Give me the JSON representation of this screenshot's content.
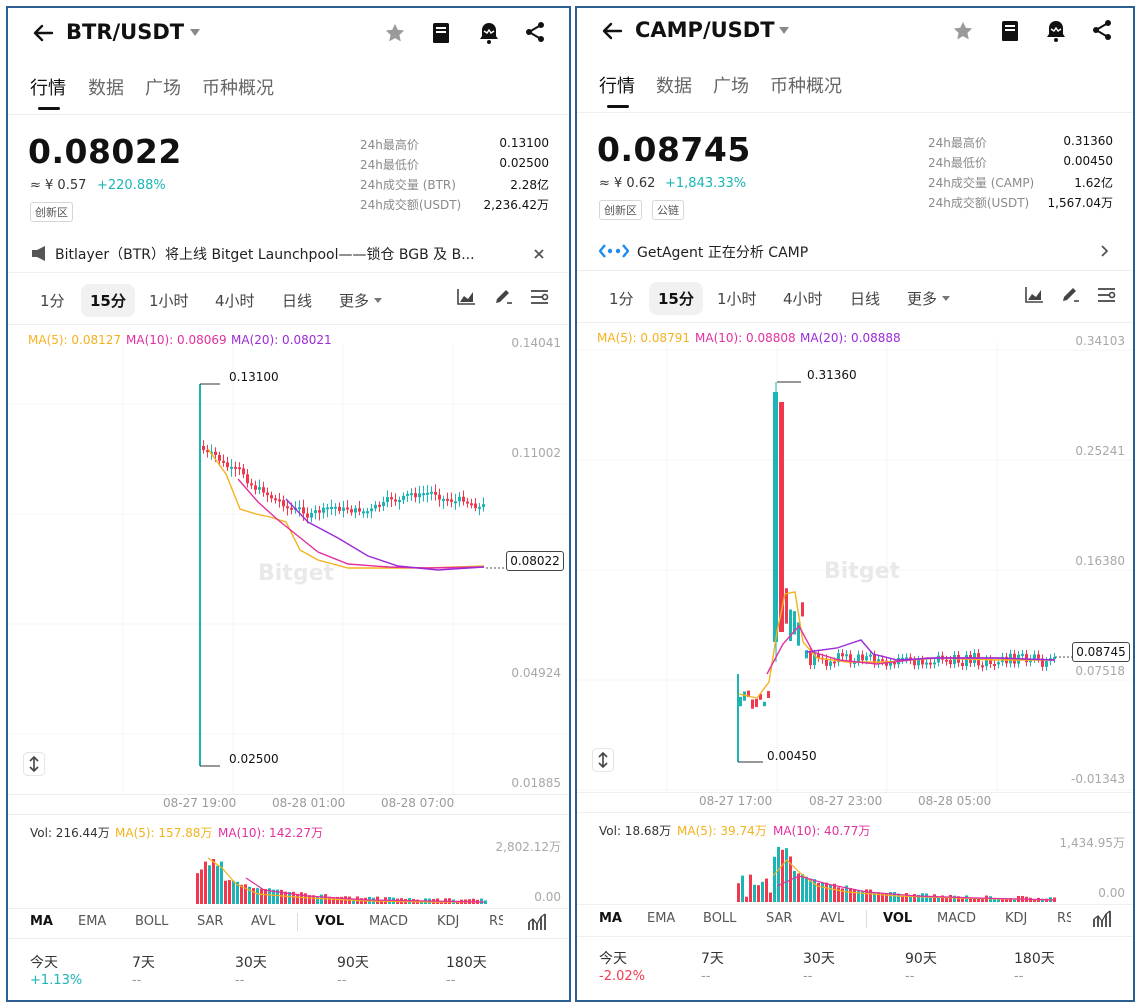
{
  "panels": [
    {
      "pair": "BTR/USDT",
      "tabs": [
        "行情",
        "数据",
        "广场",
        "币种概况"
      ],
      "price": "0.08022",
      "cny": "≈ ¥ 0.57",
      "change": "+220.88%",
      "badges": [
        "创新区"
      ],
      "stats": [
        {
          "label": "24h最高价",
          "value": "0.13100"
        },
        {
          "label": "24h最低价",
          "value": "0.02500"
        },
        {
          "label": "24h成交量 (BTR)",
          "value": "2.28亿"
        },
        {
          "label": "24h成交额(USDT)",
          "value": "2,236.42万"
        }
      ],
      "notice": "Bitlayer（BTR）将上线 Bitget Launchpool——锁仓 BGB 及 B...",
      "timeframes": [
        "1分",
        "15分",
        "1小时",
        "4小时",
        "日线",
        "更多"
      ],
      "ma_legend": {
        "ma5": "MA(5): 0.08127",
        "ma10": "MA(10): 0.08069",
        "ma20": "MA(20): 0.08021"
      },
      "y_axis": [
        "0.14041",
        "0.11002",
        "0.04924",
        "0.01885"
      ],
      "last_price_label": "0.08022",
      "high_label": "0.13100",
      "low_label": "0.02500",
      "watermark": "Bitget",
      "time_axis": [
        "08-27 19:00",
        "08-28 01:00",
        "08-28 07:00"
      ],
      "vol_legend": {
        "vol": "Vol: 216.44万",
        "ma5": "MA(5): 157.88万",
        "ma10": "MA(10): 142.27万"
      },
      "vol_axis": [
        "2,802.12万",
        "0.00"
      ],
      "indicators": [
        "MA",
        "EMA",
        "BOLL",
        "SAR",
        "AVL",
        "VOL",
        "MACD",
        "KDJ",
        "RS"
      ],
      "periods": [
        {
          "label": "今天",
          "value": "+1.13%"
        },
        {
          "label": "7天",
          "value": "--"
        },
        {
          "label": "30天",
          "value": "--"
        },
        {
          "label": "90天",
          "value": "--"
        },
        {
          "label": "180天",
          "value": "--"
        }
      ],
      "colors": {
        "change": "#1bb5b5",
        "today": "#1bb5b5"
      }
    },
    {
      "pair": "CAMP/USDT",
      "tabs": [
        "行情",
        "数据",
        "广场",
        "币种概况"
      ],
      "price": "0.08745",
      "cny": "≈ ¥ 0.62",
      "change": "+1,843.33%",
      "badges": [
        "创新区",
        "公链"
      ],
      "stats": [
        {
          "label": "24h最高价",
          "value": "0.31360"
        },
        {
          "label": "24h最低价",
          "value": "0.00450"
        },
        {
          "label": "24h成交量 (CAMP)",
          "value": "1.62亿"
        },
        {
          "label": "24h成交额(USDT)",
          "value": "1,567.04万"
        }
      ],
      "notice": "GetAgent 正在分析 CAMP",
      "timeframes": [
        "1分",
        "15分",
        "1小时",
        "4小时",
        "日线",
        "更多"
      ],
      "ma_legend": {
        "ma5": "MA(5): 0.08791",
        "ma10": "MA(10): 0.08808",
        "ma20": "MA(20): 0.08888"
      },
      "y_axis": [
        "0.34103",
        "0.25241",
        "0.16380",
        "0.07518",
        "-0.01343"
      ],
      "last_price_label": "0.08745",
      "high_label": "0.31360",
      "low_label": "0.00450",
      "watermark": "Bitget",
      "time_axis": [
        "08-27 17:00",
        "08-27 23:00",
        "08-28 05:00"
      ],
      "vol_legend": {
        "vol": "Vol: 18.68万",
        "ma5": "MA(5): 39.74万",
        "ma10": "MA(10): 40.77万"
      },
      "vol_axis": [
        "1,434.95万",
        "0.00"
      ],
      "indicators": [
        "MA",
        "EMA",
        "BOLL",
        "SAR",
        "AVL",
        "VOL",
        "MACD",
        "KDJ",
        "RS"
      ],
      "periods": [
        {
          "label": "今天",
          "value": "-2.02%"
        },
        {
          "label": "7天",
          "value": "--"
        },
        {
          "label": "30天",
          "value": "--"
        },
        {
          "label": "90天",
          "value": "--"
        },
        {
          "label": "180天",
          "value": "--"
        }
      ],
      "colors": {
        "change": "#1bb5b5",
        "today": "#f0394f"
      }
    }
  ],
  "colors": {
    "up": "#1bb5b5",
    "down": "#f0394f",
    "ma5": "#f5b21f",
    "ma10": "#e2309f",
    "ma20": "#9b2bd8"
  },
  "icons": [
    "back-arrow-icon",
    "caret-down-icon",
    "star-icon",
    "book-icon",
    "bell-icon",
    "share-icon",
    "speaker-icon",
    "close-icon",
    "getagent-icon",
    "chevron-right-icon",
    "chart-type-icon",
    "draw-icon",
    "settings-icon",
    "resize-icon",
    "indicator-settings-icon"
  ]
}
